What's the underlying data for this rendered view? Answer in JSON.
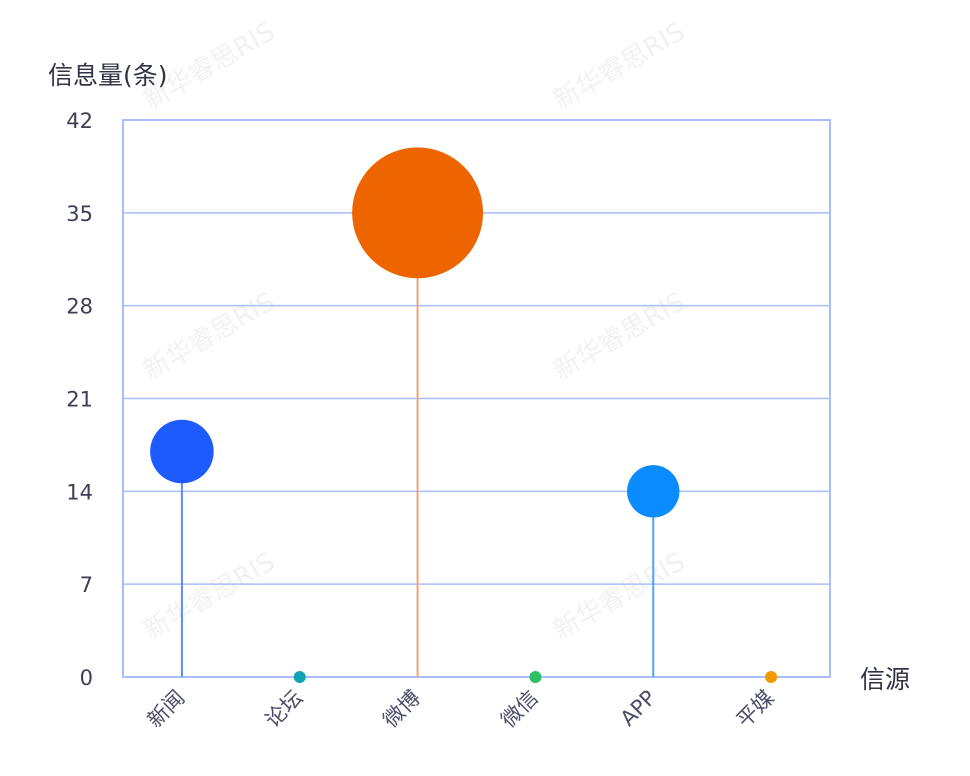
{
  "watermark": "新华睿思RIS",
  "chart_data": {
    "type": "scatter",
    "subtype": "lollipop-bubble",
    "title": "",
    "ylabel": "信息量(条)",
    "xlabel": "信源",
    "ylim": [
      0,
      42
    ],
    "yticks": [
      0,
      7,
      14,
      21,
      28,
      35,
      42
    ],
    "grid": true,
    "categories": [
      "新闻",
      "论坛",
      "微博",
      "微信",
      "APP",
      "平媒"
    ],
    "values": [
      17,
      0,
      35,
      0,
      14,
      0
    ],
    "colors": [
      "#1e5bff",
      "#12a3b6",
      "#ee6500",
      "#2dbf63",
      "#0a8bff",
      "#f09a00"
    ],
    "stem_colors": [
      "#5b8cff",
      "#12a3b6",
      "#f5a070",
      "#2dbf63",
      "#4aa6ff",
      "#f09a00"
    ],
    "grid_color": "#a9bdfb"
  }
}
